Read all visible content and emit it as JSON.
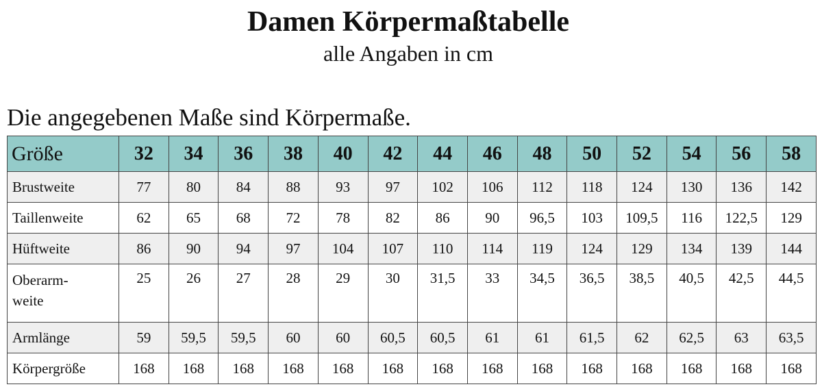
{
  "title": "Damen Körpermaßtabelle",
  "subtitle": "alle Angaben in cm",
  "note": "Die angegebenen Maße sind Körpermaße.",
  "table": {
    "header": [
      "Größe",
      "32",
      "34",
      "36",
      "38",
      "40",
      "42",
      "44",
      "46",
      "48",
      "50",
      "52",
      "54",
      "56",
      "58"
    ],
    "rows": [
      [
        "Brustweite",
        "77",
        "80",
        "84",
        "88",
        "93",
        "97",
        "102",
        "106",
        "112",
        "118",
        "124",
        "130",
        "136",
        "142"
      ],
      [
        "Taillenweite",
        "62",
        "65",
        "68",
        "72",
        "78",
        "82",
        "86",
        "90",
        "96,5",
        "103",
        "109,5",
        "116",
        "122,5",
        "129"
      ],
      [
        "Hüftweite",
        "86",
        "90",
        "94",
        "97",
        "104",
        "107",
        "110",
        "114",
        "119",
        "124",
        "129",
        "134",
        "139",
        "144"
      ],
      [
        "Oberarm-\nweite",
        "25",
        "26",
        "27",
        "28",
        "29",
        "30",
        "31,5",
        "33",
        "34,5",
        "36,5",
        "38,5",
        "40,5",
        "42,5",
        "44,5"
      ],
      [
        "Armlänge",
        "59",
        "59,5",
        "59,5",
        "60",
        "60",
        "60,5",
        "60,5",
        "61",
        "61",
        "61,5",
        "62",
        "62,5",
        "63",
        "63,5"
      ],
      [
        "Körpergröße",
        "168",
        "168",
        "168",
        "168",
        "168",
        "168",
        "168",
        "168",
        "168",
        "168",
        "168",
        "168",
        "168",
        "168"
      ]
    ]
  }
}
